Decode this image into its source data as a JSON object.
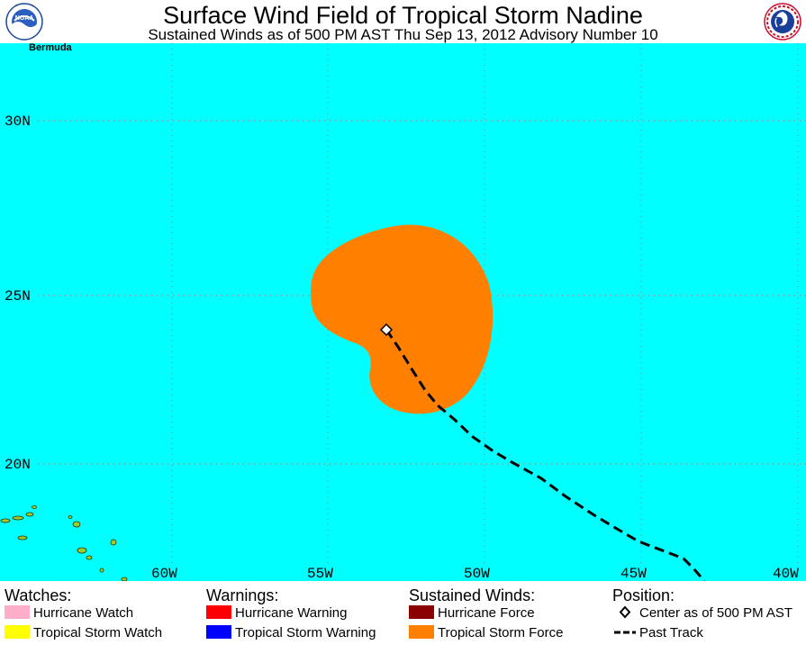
{
  "header": {
    "title": "Surface Wind Field of Tropical Storm Nadine",
    "subtitle": "Sustained Winds as of 500 PM AST Thu Sep 13, 2012    Advisory Number 10",
    "left_logo": "NOAA",
    "right_logo": "NATIONAL WEATHER SERVICE"
  },
  "map": {
    "ocean_color": "#00ffff",
    "land_color": "#99cc33",
    "grid_color": "#888888",
    "lat_labels": [
      "30N",
      "25N",
      "20N"
    ],
    "lon_labels": [
      "60W",
      "55W",
      "50W",
      "45W",
      "40W"
    ],
    "place_label": "Bermuda",
    "storm_center": {
      "lat": 24.0,
      "lon": 52.8
    },
    "tropical_storm_force_color": "#ff8000"
  },
  "legend": {
    "watches": {
      "heading": "Watches:",
      "items": [
        {
          "label": "Hurricane Watch",
          "color": "#ffaec9"
        },
        {
          "label": "Tropical Storm Watch",
          "color": "#ffff00"
        }
      ]
    },
    "warnings": {
      "heading": "Warnings:",
      "items": [
        {
          "label": "Hurricane Warning",
          "color": "#ff0000"
        },
        {
          "label": "Tropical Storm Warning",
          "color": "#0000ff"
        }
      ]
    },
    "winds": {
      "heading": "Sustained Winds:",
      "items": [
        {
          "label": "Hurricane Force",
          "color": "#8b0000"
        },
        {
          "label": "Tropical Storm Force",
          "color": "#ff8000"
        }
      ]
    },
    "position": {
      "heading": "Position:",
      "center_label": "Center as of 500 PM AST",
      "track_label": "Past Track"
    }
  }
}
